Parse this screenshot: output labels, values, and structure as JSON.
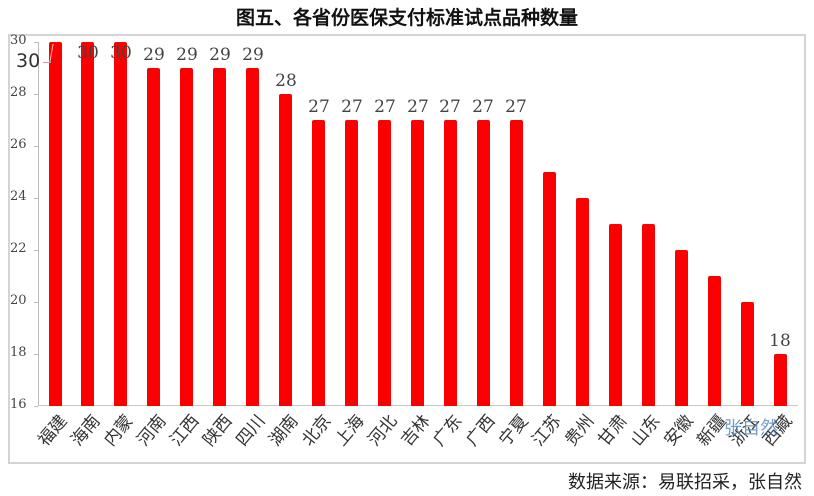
{
  "title": "图五、各省份医保支付标准试点品种数量",
  "source": "数据来源：易联招采，张自然",
  "watermark": "张自然",
  "overlap_axis_label": "30",
  "colors": {
    "bar": "#fa0000",
    "axis": "#bdbdbd",
    "frame": "#d4d4d4",
    "watermark": "#5b8fbf"
  },
  "chart_data": {
    "type": "bar",
    "title": "图五、各省份医保支付标准试点品种数量",
    "xlabel": "",
    "ylabel": "",
    "ylim": [
      16,
      30
    ],
    "yticks": [
      16,
      18,
      20,
      22,
      24,
      26,
      28,
      30
    ],
    "grid": false,
    "legend": null,
    "categories": [
      "福建",
      "海南",
      "内蒙",
      "河南",
      "江西",
      "陕西",
      "四川",
      "湖南",
      "北京",
      "上海",
      "河北",
      "吉林",
      "广东",
      "广西",
      "宁夏",
      "江苏",
      "贵州",
      "甘肃",
      "山东",
      "安徽",
      "新疆",
      "浙江",
      "西藏"
    ],
    "values": [
      30,
      30,
      30,
      29,
      29,
      29,
      29,
      28,
      27,
      27,
      27,
      27,
      27,
      27,
      27,
      25,
      24,
      23,
      23,
      22,
      21,
      20,
      18
    ],
    "data_labels": [
      "30",
      "30",
      "30",
      "29",
      "29",
      "29",
      "29",
      "28",
      "27",
      "27",
      "27",
      "27",
      "27",
      "27",
      "27",
      "",
      "",
      "",
      "",
      "",
      "",
      "",
      "18"
    ],
    "annotations": [
      "张自然",
      "数据来源：易联招采，张自然"
    ]
  }
}
